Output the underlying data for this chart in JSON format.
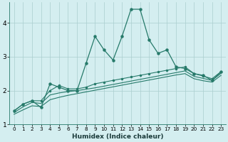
{
  "xlabel": "Humidex (Indice chaleur)",
  "x": [
    0,
    1,
    2,
    3,
    4,
    5,
    6,
    7,
    8,
    9,
    10,
    11,
    12,
    13,
    14,
    15,
    16,
    17,
    18,
    19,
    20,
    21,
    22,
    23
  ],
  "line_main": [
    1.4,
    1.6,
    1.7,
    1.5,
    2.2,
    2.1,
    2.0,
    2.0,
    2.8,
    3.6,
    3.2,
    2.9,
    3.6,
    4.4,
    4.4,
    3.5,
    3.1,
    3.2,
    2.7,
    2.65,
    2.5,
    2.45,
    2.3,
    2.55
  ],
  "line_a": [
    1.4,
    1.6,
    1.7,
    1.7,
    2.0,
    2.15,
    2.05,
    2.05,
    2.1,
    2.2,
    2.25,
    2.3,
    2.35,
    2.4,
    2.45,
    2.5,
    2.55,
    2.6,
    2.65,
    2.7,
    2.5,
    2.43,
    2.35,
    2.56
  ],
  "line_b": [
    1.35,
    1.52,
    1.65,
    1.62,
    1.87,
    1.93,
    1.97,
    2.0,
    2.04,
    2.08,
    2.13,
    2.18,
    2.23,
    2.28,
    2.33,
    2.38,
    2.43,
    2.48,
    2.53,
    2.58,
    2.42,
    2.36,
    2.3,
    2.51
  ],
  "line_c": [
    1.3,
    1.43,
    1.55,
    1.53,
    1.73,
    1.8,
    1.86,
    1.91,
    1.96,
    2.01,
    2.06,
    2.11,
    2.16,
    2.21,
    2.26,
    2.31,
    2.36,
    2.41,
    2.46,
    2.5,
    2.35,
    2.29,
    2.25,
    2.45
  ],
  "line_color": "#267a6a",
  "bg_color": "#d4eef0",
  "grid_color": "#aacece",
  "ylim": [
    1.0,
    4.6
  ],
  "xlim": [
    -0.5,
    23.5
  ],
  "yticks": [
    1,
    2,
    3,
    4
  ],
  "xticks": [
    0,
    1,
    2,
    3,
    4,
    5,
    6,
    7,
    8,
    9,
    10,
    11,
    12,
    13,
    14,
    15,
    16,
    17,
    18,
    19,
    20,
    21,
    22,
    23
  ]
}
